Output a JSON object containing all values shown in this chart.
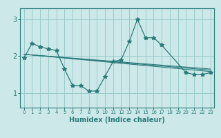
{
  "title": "",
  "xlabel": "Humidex (Indice chaleur)",
  "ylabel": "",
  "background_color": "#cce8e8",
  "grid_color": "#99cccc",
  "line_color": "#2a7a7a",
  "xlim": [
    -0.5,
    23.5
  ],
  "ylim": [
    0.6,
    3.3
  ],
  "yticks": [
    1,
    2,
    3
  ],
  "xticks": [
    0,
    1,
    2,
    3,
    4,
    5,
    6,
    7,
    8,
    9,
    10,
    11,
    12,
    13,
    14,
    15,
    16,
    17,
    18,
    19,
    20,
    21,
    22,
    23
  ],
  "series1": {
    "x": [
      0,
      1,
      2,
      3,
      4,
      5,
      6,
      7,
      8,
      9,
      10,
      11,
      12,
      13,
      14,
      15,
      16,
      17,
      18,
      19,
      20,
      21,
      22,
      23
    ],
    "y": [
      1.95,
      2.35,
      2.25,
      2.2,
      2.15,
      1.65,
      1.2,
      1.2,
      1.05,
      1.05,
      1.45,
      1.85,
      1.9,
      2.4,
      3.0,
      2.5,
      2.5,
      2.3,
      null,
      null,
      1.55,
      1.5,
      1.5,
      1.55
    ]
  },
  "series2": {
    "x": [
      0,
      23
    ],
    "y": [
      2.05,
      1.58
    ]
  },
  "series3": {
    "x": [
      0,
      23
    ],
    "y": [
      2.05,
      1.62
    ]
  },
  "series4": {
    "x": [
      0,
      23
    ],
    "y": [
      2.05,
      1.65
    ]
  }
}
